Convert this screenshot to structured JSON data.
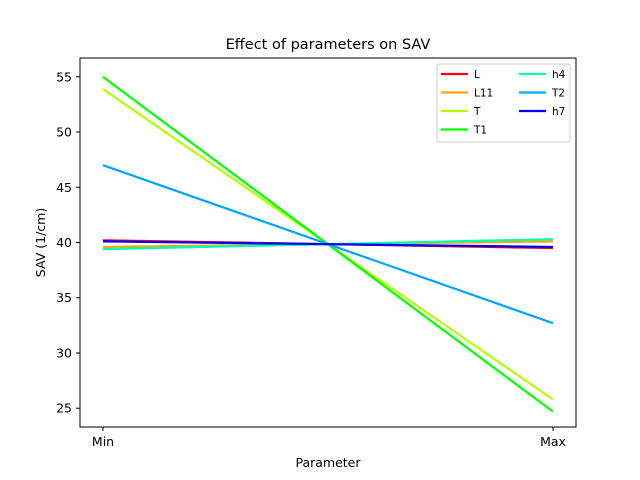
{
  "chart_data": {
    "type": "line",
    "title": "Effect of parameters on SAV",
    "xlabel": "Parameter",
    "ylabel": "SAV (1/cm)",
    "categories": [
      "Min",
      "Max"
    ],
    "ylim": [
      23.3,
      56.7
    ],
    "yticks": [
      25,
      30,
      35,
      40,
      45,
      50,
      55
    ],
    "grid": false,
    "legend": {
      "placement": "top-right",
      "columns": 2
    },
    "series": [
      {
        "name": "L",
        "color": "#ff0000",
        "values": [
          40.2,
          39.5
        ]
      },
      {
        "name": "L11",
        "color": "#ffa500",
        "values": [
          39.6,
          40.1
        ]
      },
      {
        "name": "T",
        "color": "#b2ff00",
        "values": [
          53.9,
          25.8
        ]
      },
      {
        "name": "T1",
        "color": "#00ff00",
        "values": [
          55.0,
          24.7
        ]
      },
      {
        "name": "h4",
        "color": "#00ffb2",
        "values": [
          39.4,
          40.3
        ]
      },
      {
        "name": "T2",
        "color": "#00a5ff",
        "values": [
          47.0,
          32.7
        ]
      },
      {
        "name": "h7",
        "color": "#0000ff",
        "values": [
          40.1,
          39.6
        ]
      }
    ]
  }
}
